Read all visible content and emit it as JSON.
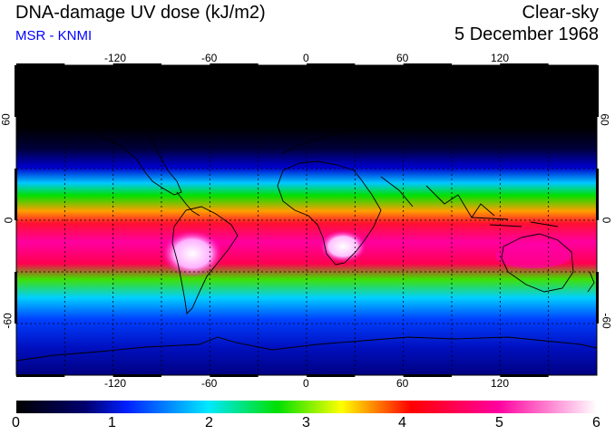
{
  "header": {
    "title": "DNA-damage UV dose (kJ/m2)",
    "subtitle": "MSR - KNMI",
    "sky": "Clear-sky",
    "date": "5 December 1968"
  },
  "map": {
    "projection": "equirectangular",
    "lon_range": [
      -180,
      180
    ],
    "lat_range": [
      -90,
      90
    ],
    "grid_lon": [
      -150,
      -120,
      -90,
      -60,
      -30,
      0,
      30,
      60,
      90,
      120,
      150
    ],
    "grid_lat": [
      -60,
      -30,
      0,
      30,
      60
    ],
    "lon_labels": [
      "-120",
      "-60",
      "0",
      "60",
      "120"
    ],
    "lat_labels": [
      "60",
      "0",
      "-60"
    ],
    "grid_style": "dotted"
  },
  "colorbar": {
    "labels": [
      "0",
      "1",
      "2",
      "3",
      "4",
      "5",
      "6"
    ],
    "stops": [
      "#000000",
      "#000070",
      "#0020ff",
      "#00e8ff",
      "#00e000",
      "#ffff00",
      "#ff0000",
      "#ff00a0",
      "#ffffff"
    ]
  }
}
